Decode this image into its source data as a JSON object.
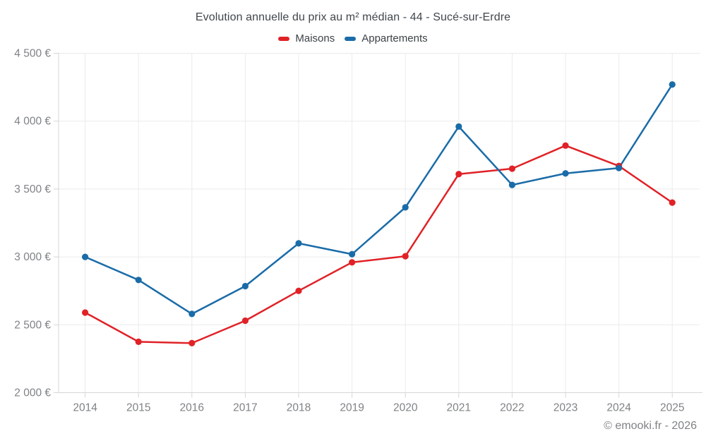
{
  "chart_data": {
    "type": "line",
    "title": "Evolution annuelle du prix au m² médian - 44 - Sucé-sur-Erdre",
    "footer": "© emooki.fr - 2026",
    "categories": [
      "2014",
      "2015",
      "2016",
      "2017",
      "2018",
      "2019",
      "2020",
      "2021",
      "2022",
      "2023",
      "2024",
      "2025"
    ],
    "series": [
      {
        "name": "Maisons",
        "color": "#e02227",
        "values": [
          2590,
          2375,
          2365,
          2530,
          2750,
          2960,
          3005,
          3610,
          3650,
          3820,
          3670,
          3400
        ]
      },
      {
        "name": "Appartements",
        "color": "#1a6ca8",
        "values": [
          3000,
          2830,
          2580,
          2785,
          3100,
          3020,
          3365,
          3960,
          3530,
          3615,
          3655,
          4270
        ]
      }
    ],
    "ylim": [
      2000,
      4500
    ],
    "ytick_step": 500,
    "yticks": [
      {
        "value": 4500,
        "label": "4 500 €"
      },
      {
        "value": 4000,
        "label": "4 000 €"
      },
      {
        "value": 3500,
        "label": "3 500 €"
      },
      {
        "value": 3000,
        "label": "3 000 €"
      },
      {
        "value": 2500,
        "label": "2 500 €"
      },
      {
        "value": 2000,
        "label": "2 000 €"
      }
    ],
    "xlabel": "",
    "ylabel": "",
    "grid": true,
    "legend_position": "top-center",
    "currency_suffix": "€"
  },
  "theme": {
    "grid_color": "#ebebeb",
    "axis_color": "#d6d6d6",
    "tick_label_color": "#7f8285",
    "title_color": "#41474d"
  }
}
